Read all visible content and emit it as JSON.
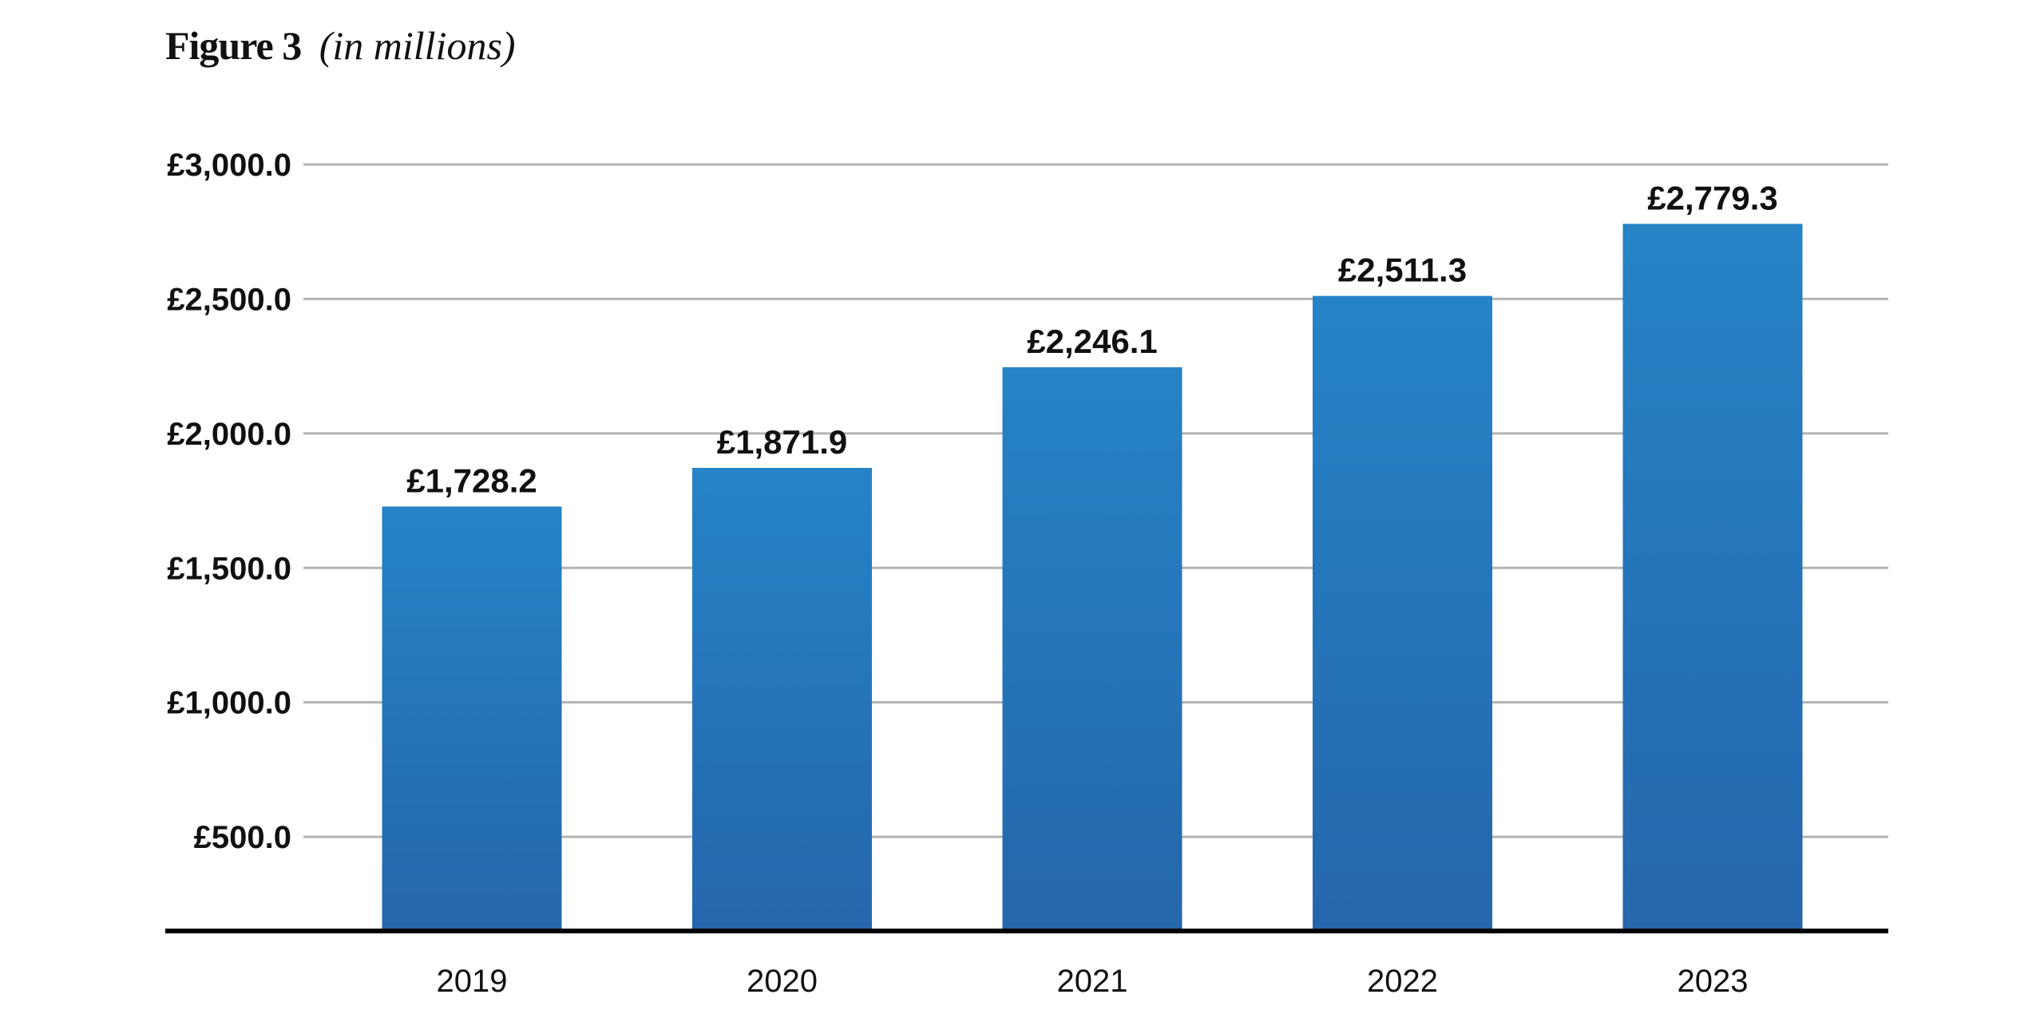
{
  "figure": {
    "title": "Figure 3",
    "subtitle": "(in millions)"
  },
  "chart_data": {
    "type": "bar",
    "categories": [
      "2019",
      "2020",
      "2021",
      "2022",
      "2023"
    ],
    "values": [
      1728.2,
      1871.9,
      2246.1,
      2511.3,
      2779.3
    ],
    "data_labels": [
      "£1,728.2",
      "£1,871.9",
      "£2,246.1",
      "£2,511.3",
      "£2,779.3"
    ],
    "yticks": [
      500,
      1000,
      1500,
      2000,
      2500,
      3000
    ],
    "ytick_labels": [
      "£500.0",
      "£1,000.0",
      "£1,500.0",
      "£2,000.0",
      "£2,500.0",
      "£3,000.0"
    ],
    "ylim": [
      150,
      3000
    ],
    "grid": true,
    "xlabel": "",
    "ylabel": "",
    "colors": {
      "bar_top": "#2583c6",
      "bar_bottom": "#2566ac",
      "grid": "#b3b3b3",
      "axis": "#000000",
      "text": "#111111"
    }
  }
}
